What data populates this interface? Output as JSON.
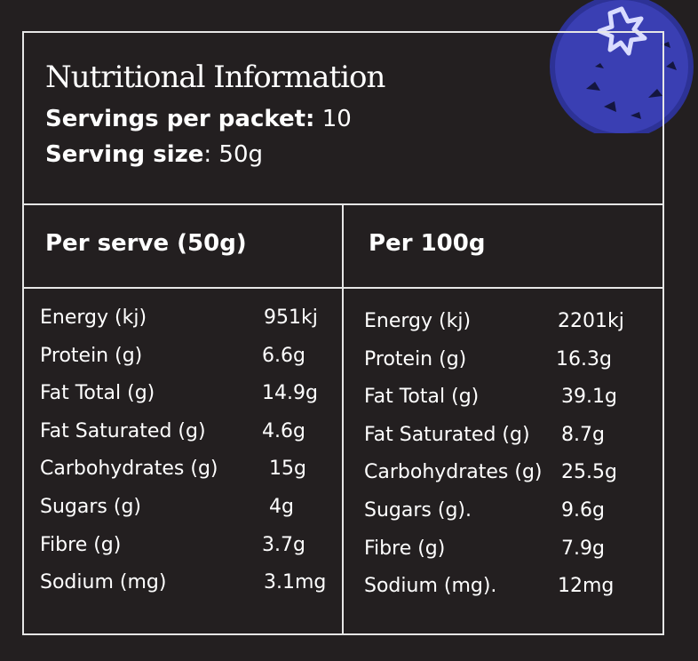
{
  "title": "Nutritional Information",
  "servings": {
    "label": "Servings per packet",
    "value": "10"
  },
  "serving_size": {
    "label": "Serving size",
    "value": "50g"
  },
  "per_serve": {
    "heading": "Per serve (50g)",
    "rows": [
      {
        "label": "Energy (kj)",
        "value": "951kj"
      },
      {
        "label": "Protein (g)",
        "value": "6.6g"
      },
      {
        "label": "Fat Total (g)",
        "value": "14.9g"
      },
      {
        "label": "Fat Saturated (g)",
        "value": "4.6g"
      },
      {
        "label": "Carbohydrates (g)",
        "value": "15g"
      },
      {
        "label": "Sugars (g)",
        "value": "4g"
      },
      {
        "label": "Fibre (g)",
        "value": "3.7g"
      },
      {
        "label": "Sodium (mg)",
        "value": "3.1mg"
      }
    ]
  },
  "per_100g": {
    "heading": "Per 100g",
    "rows": [
      {
        "label": "Energy (kj)",
        "value": "2201kj"
      },
      {
        "label": "Protein (g)",
        "value": "16.3g"
      },
      {
        "label": "Fat Total (g)",
        "value": "39.1g"
      },
      {
        "label": "Fat Saturated (g)",
        "value": "8.7g"
      },
      {
        "label": "Carbohydrates (g)",
        "value": "25.5g"
      },
      {
        "label": "Sugars (g).",
        "value": "9.6g"
      },
      {
        "label": "Fibre (g)",
        "value": "7.9g"
      },
      {
        "label": "Sodium (mg).",
        "value": "12mg"
      }
    ]
  },
  "colors": {
    "background": "#231f20",
    "border": "#e6e6e6",
    "accent": "#3a3fb3"
  },
  "icons": {
    "decoration": "blueberry-icon"
  }
}
